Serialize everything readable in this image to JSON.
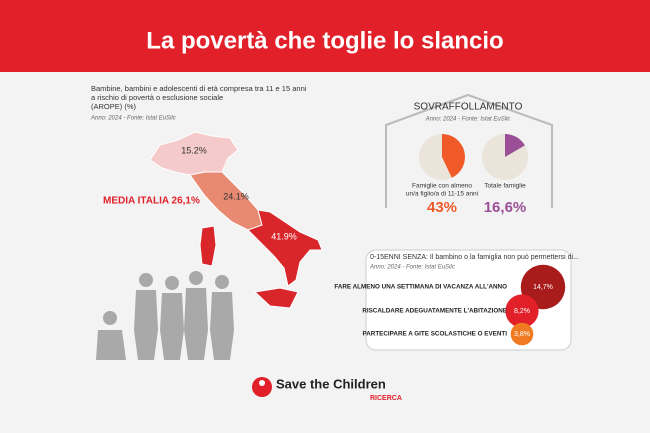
{
  "title": "La povertà che toglie lo slancio",
  "map": {
    "caption": [
      "Bambine, bambini e adolescenti  di età compresa tra 11 e 15 anni",
      "a rischio di povertà o esclusione sociale",
      "(AROPE) (%)"
    ],
    "source": "Anno: 2024 - Fonte: Istat EuSilc",
    "average": "MEDIA ITALIA 26,1%",
    "regions": [
      "15.2%",
      "24.1%",
      "41.9%"
    ]
  },
  "overcrowding": {
    "title": "SOVRAFFOLLAMENTO",
    "source": "Anno: 2024 - Fonte: Istat EuSilc",
    "pies": [
      {
        "name": [
          "Famiglie con almeno",
          "un/a figlio/a di 11-15 anni"
        ],
        "value": 43,
        "value_label": "43%",
        "color": "#f05a28"
      },
      {
        "name": [
          "Totale famiglie"
        ],
        "value": 16.6,
        "value_label": "16,6%",
        "color": "#9b4f96"
      }
    ]
  },
  "deprivation": {
    "title": "0-15ENNI SENZA: Il bambino o la famiglia non può permettersi di...",
    "source": "Anno: 2024 - Fonte: Istat EuSilc",
    "items": [
      {
        "label": "FARE ALMENO UNA SETTIMANA DI VACANZA ALL'ANNO",
        "value": 14.7,
        "value_label": "14,7%",
        "color": "#a81c1c"
      },
      {
        "label": "RISCALDARE ADEGUATAMENTE L'ABITAZIONE",
        "value": 8.2,
        "value_label": "8,2%",
        "color": "#e2202a"
      },
      {
        "label": "PARTECIPARE A GITE SCOLASTICHE O EVENTI",
        "value": 3.8,
        "value_label": "3,8%",
        "color": "#f07a22"
      }
    ]
  },
  "logo": {
    "name": "Save the Children",
    "sub": "RICERCA"
  }
}
